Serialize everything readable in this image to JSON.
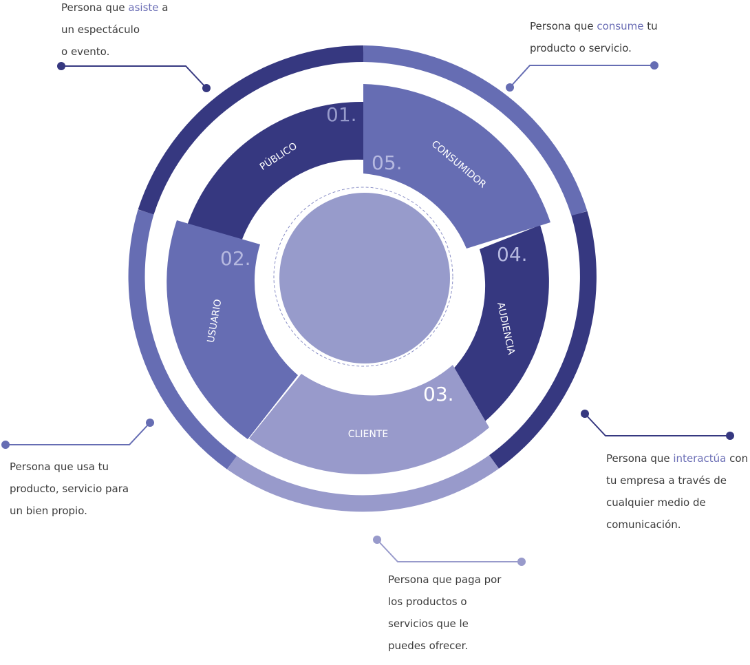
{
  "segments": [
    {
      "number": "01.",
      "label": "PÚBLICO"
    },
    {
      "number": "02.",
      "label": "USUARIO"
    },
    {
      "number": "03.",
      "label": "CLIENTE"
    },
    {
      "number": "04.",
      "label": "AUDIENCIA"
    },
    {
      "number": "05.",
      "label": "CONSUMIDOR"
    }
  ],
  "descriptions": {
    "publico": {
      "line1_before": "Persona que ",
      "line1_highlight": "asiste",
      "line1_after": " a",
      "line2": "un espectáculo",
      "line3": "o evento."
    },
    "consumidor": {
      "line1_before": "Persona que ",
      "line1_highlight": "consume",
      "line1_after": " tu",
      "line2": "producto o servicio."
    },
    "usuario": {
      "line1": "Persona que usa tu",
      "line2": "producto, servicio para",
      "line3": "un bien propio."
    },
    "audiencia": {
      "line1_before": "Persona que ",
      "line1_highlight": "interactúa",
      "line1_after": " con",
      "line2": "tu empresa a través de",
      "line3": "cualquier medio de",
      "line4": "comunicación."
    },
    "cliente": {
      "line1": "Persona que paga por",
      "line2": "los productos o",
      "line3": "servicios que le",
      "line4": "puedes ofrecer."
    }
  },
  "colors": {
    "dark": "#363880",
    "mid": "#666db3",
    "light": "#989acb",
    "center": "#979bcb",
    "dots": "#8a8fc6"
  }
}
